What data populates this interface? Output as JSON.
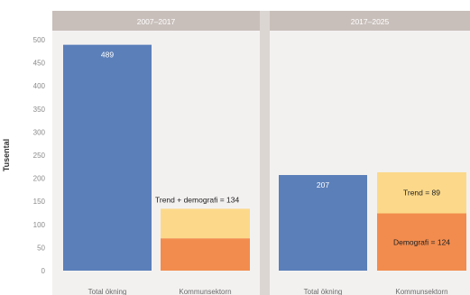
{
  "chart_data": {
    "type": "bar",
    "ylabel": "Tusental",
    "ylim": [
      0,
      500
    ],
    "yticks": [
      0,
      50,
      100,
      150,
      200,
      250,
      300,
      350,
      400,
      450,
      500
    ],
    "panels": [
      {
        "title": "2007–2017",
        "categories": [
          "Total ökning",
          "Kommunsektorn"
        ],
        "bars": [
          {
            "category": "Total ökning",
            "value": 489,
            "label": "489",
            "color": "#5b7fb9"
          },
          {
            "category": "Kommunsektorn",
            "stack": [
              {
                "name": "Demografi",
                "value": 70,
                "color": "#f28c4e"
              },
              {
                "name": "Trend",
                "value": 64,
                "color": "#fcd98a"
              }
            ],
            "label": "Trend + demografi = 134"
          }
        ]
      },
      {
        "title": "2017–2025",
        "categories": [
          "Total ökning",
          "Kommunsektorn"
        ],
        "bars": [
          {
            "category": "Total ökning",
            "value": 207,
            "label": "207",
            "color": "#5b7fb9"
          },
          {
            "category": "Kommunsektorn",
            "stack": [
              {
                "name": "Demografi",
                "value": 124,
                "color": "#f28c4e",
                "label": "Demografi = 124"
              },
              {
                "name": "Trend",
                "value": 89,
                "color": "#fcd98a",
                "label": "Trend = 89"
              }
            ]
          }
        ]
      }
    ],
    "grid": false,
    "colors": {
      "strip": "#c8bfba",
      "panel_bg": "#f3f1f0",
      "divider": "#dcd6d3"
    }
  }
}
